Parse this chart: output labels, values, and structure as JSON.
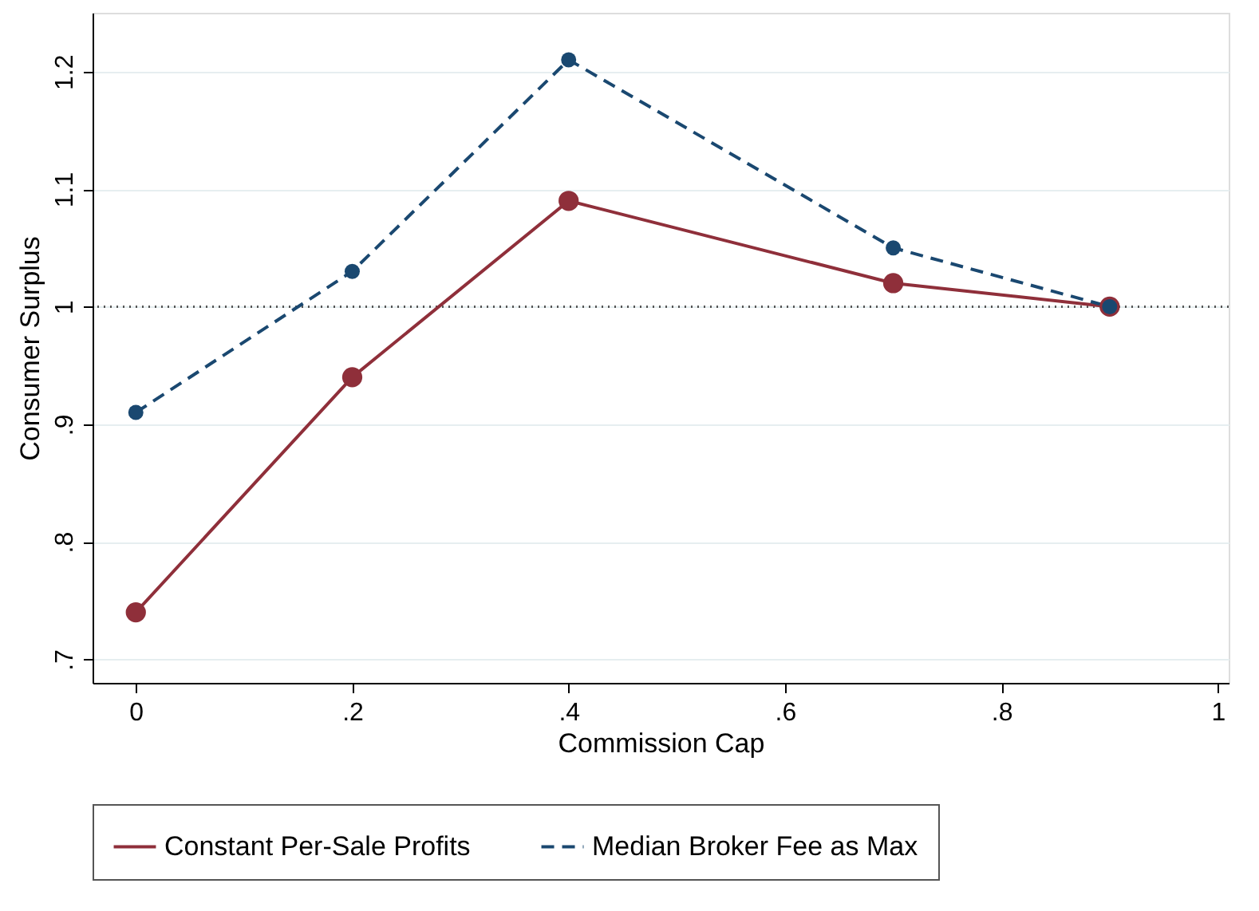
{
  "chart_data": {
    "type": "line",
    "xlabel": "Commission Cap",
    "ylabel": "Consumer Surplus",
    "x": [
      0,
      0.2,
      0.4,
      0.7,
      0.9
    ],
    "series": [
      {
        "name": "Constant Per-Sale Profits",
        "color": "#8f2f3a",
        "values": [
          0.74,
          0.94,
          1.09,
          1.02,
          1.0
        ],
        "line_style": "solid"
      },
      {
        "name": "Median Broker Fee as Max",
        "color": "#1a4870",
        "values": [
          0.91,
          1.03,
          1.21,
          1.05,
          1.0
        ],
        "line_style": "dashed"
      }
    ],
    "marker": "circle",
    "xlim": [
      -0.04,
      1.01
    ],
    "ylim": [
      0.68,
      1.25
    ],
    "xticks": [
      0,
      {
        "value": 0.2,
        "label": ".2"
      },
      {
        "value": 0.4,
        "label": ".4"
      },
      {
        "value": 0.6,
        "label": ".6"
      },
      {
        "value": 0.8,
        "label": ".8"
      },
      1
    ],
    "yticks": [
      {
        "value": 0.7,
        "label": ".7"
      },
      {
        "value": 0.8,
        "label": ".8"
      },
      {
        "value": 0.9,
        "label": ".9"
      },
      1,
      1.1,
      1.2
    ],
    "ref_lines": [
      {
        "axis": "y",
        "value": 1,
        "color": "#555555",
        "line_style": "dotted"
      }
    ],
    "grid": "y",
    "legend": "bottom"
  }
}
